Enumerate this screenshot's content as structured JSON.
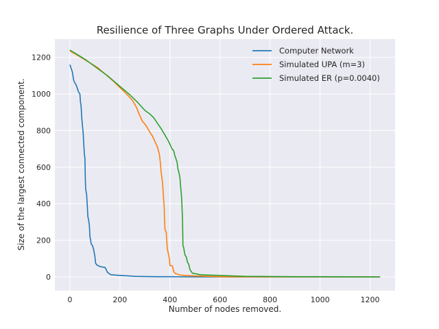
{
  "chart_data": {
    "type": "line",
    "title": "Resilience of Three Graphs Under Ordered Attack.",
    "xlabel": "Number of nodes removed.",
    "ylabel": "Size of the largest connected component.",
    "xlim": [
      -60,
      1300
    ],
    "ylim": [
      -75,
      1300
    ],
    "xticks": [
      0,
      200,
      400,
      600,
      800,
      1000,
      1200
    ],
    "yticks": [
      0,
      200,
      400,
      600,
      800,
      1000,
      1200
    ],
    "grid": true,
    "legend_position": "top-right",
    "series": [
      {
        "name": "Computer Network",
        "color": "#1f77b4",
        "points": [
          [
            0,
            1160
          ],
          [
            10,
            1120
          ],
          [
            15,
            1075
          ],
          [
            20,
            1060
          ],
          [
            25,
            1050
          ],
          [
            30,
            1030
          ],
          [
            35,
            1010
          ],
          [
            40,
            1000
          ],
          [
            42,
            960
          ],
          [
            45,
            930
          ],
          [
            47,
            880
          ],
          [
            50,
            830
          ],
          [
            53,
            790
          ],
          [
            55,
            740
          ],
          [
            58,
            670
          ],
          [
            60,
            650
          ],
          [
            62,
            520
          ],
          [
            63,
            480
          ],
          [
            65,
            465
          ],
          [
            67,
            450
          ],
          [
            70,
            380
          ],
          [
            72,
            330
          ],
          [
            75,
            310
          ],
          [
            78,
            280
          ],
          [
            80,
            220
          ],
          [
            83,
            200
          ],
          [
            85,
            180
          ],
          [
            90,
            172
          ],
          [
            95,
            150
          ],
          [
            100,
            110
          ],
          [
            103,
            75
          ],
          [
            108,
            65
          ],
          [
            115,
            60
          ],
          [
            125,
            55
          ],
          [
            140,
            52
          ],
          [
            145,
            40
          ],
          [
            150,
            25
          ],
          [
            155,
            20
          ],
          [
            160,
            15
          ],
          [
            165,
            12
          ],
          [
            180,
            10
          ],
          [
            200,
            8
          ],
          [
            230,
            6
          ],
          [
            260,
            3
          ],
          [
            300,
            2
          ],
          [
            350,
            1
          ],
          [
            400,
            1
          ],
          [
            500,
            0
          ],
          [
            700,
            0
          ],
          [
            1000,
            0
          ],
          [
            1240,
            0
          ]
        ]
      },
      {
        "name": "Simulated UPA (m=3)",
        "color": "#ff7f0e",
        "points": [
          [
            0,
            1235
          ],
          [
            20,
            1220
          ],
          [
            50,
            1195
          ],
          [
            80,
            1170
          ],
          [
            110,
            1145
          ],
          [
            140,
            1110
          ],
          [
            170,
            1075
          ],
          [
            200,
            1035
          ],
          [
            230,
            995
          ],
          [
            250,
            965
          ],
          [
            265,
            930
          ],
          [
            280,
            880
          ],
          [
            290,
            850
          ],
          [
            300,
            835
          ],
          [
            310,
            815
          ],
          [
            320,
            790
          ],
          [
            330,
            770
          ],
          [
            340,
            740
          ],
          [
            350,
            710
          ],
          [
            358,
            670
          ],
          [
            362,
            620
          ],
          [
            365,
            570
          ],
          [
            370,
            520
          ],
          [
            372,
            480
          ],
          [
            375,
            420
          ],
          [
            377,
            380
          ],
          [
            378,
            330
          ],
          [
            380,
            260
          ],
          [
            385,
            245
          ],
          [
            388,
            180
          ],
          [
            390,
            150
          ],
          [
            395,
            120
          ],
          [
            398,
            100
          ],
          [
            400,
            62
          ],
          [
            410,
            60
          ],
          [
            415,
            30
          ],
          [
            420,
            20
          ],
          [
            430,
            15
          ],
          [
            440,
            10
          ],
          [
            460,
            8
          ],
          [
            500,
            5
          ],
          [
            550,
            3
          ],
          [
            600,
            1
          ],
          [
            700,
            0
          ],
          [
            1000,
            0
          ],
          [
            1240,
            0
          ]
        ]
      },
      {
        "name": "Simulated ER (p=0.0040)",
        "color": "#2ca02c",
        "points": [
          [
            0,
            1240
          ],
          [
            30,
            1215
          ],
          [
            60,
            1190
          ],
          [
            90,
            1160
          ],
          [
            120,
            1130
          ],
          [
            150,
            1100
          ],
          [
            180,
            1065
          ],
          [
            210,
            1030
          ],
          [
            240,
            995
          ],
          [
            270,
            955
          ],
          [
            290,
            925
          ],
          [
            300,
            910
          ],
          [
            320,
            890
          ],
          [
            335,
            870
          ],
          [
            350,
            840
          ],
          [
            365,
            810
          ],
          [
            380,
            775
          ],
          [
            395,
            740
          ],
          [
            408,
            700
          ],
          [
            415,
            690
          ],
          [
            420,
            660
          ],
          [
            428,
            630
          ],
          [
            432,
            590
          ],
          [
            436,
            570
          ],
          [
            440,
            540
          ],
          [
            442,
            500
          ],
          [
            445,
            460
          ],
          [
            447,
            425
          ],
          [
            450,
            320
          ],
          [
            451,
            250
          ],
          [
            452,
            170
          ],
          [
            455,
            160
          ],
          [
            460,
            120
          ],
          [
            465,
            110
          ],
          [
            470,
            80
          ],
          [
            475,
            70
          ],
          [
            480,
            40
          ],
          [
            485,
            30
          ],
          [
            490,
            20
          ],
          [
            500,
            18
          ],
          [
            520,
            12
          ],
          [
            550,
            10
          ],
          [
            600,
            8
          ],
          [
            650,
            5
          ],
          [
            700,
            3
          ],
          [
            800,
            2
          ],
          [
            900,
            1
          ],
          [
            1000,
            1
          ],
          [
            1240,
            0
          ]
        ]
      }
    ]
  }
}
